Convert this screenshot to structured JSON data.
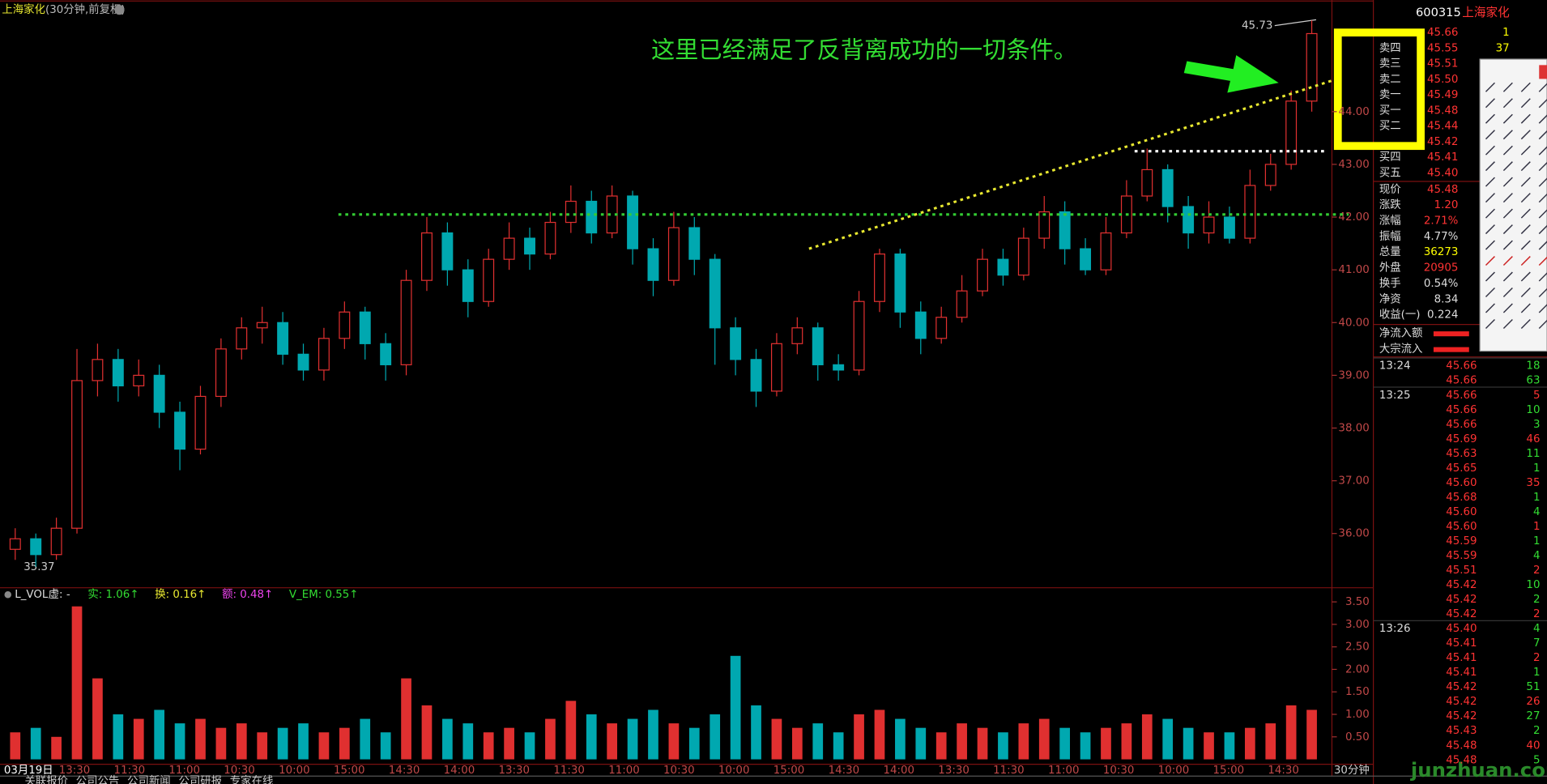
{
  "chart_data": {
    "type": "candlestick",
    "title_name": "上海家化",
    "title_period": "(30分钟,前复权)",
    "annotation": "这里已经满足了反背离成功的一切条件。",
    "high_label": "45.73",
    "low_label": "35.37",
    "period_label": "30分钟",
    "up_color": "#e03030",
    "down_color": "#00a8b0",
    "ylim": [
      34.99,
      45.93
    ],
    "yticks": [
      {
        "value": 36,
        "label": "36.00"
      },
      {
        "value": 37,
        "label": "37.00"
      },
      {
        "value": 38,
        "label": "38.00"
      },
      {
        "value": 39,
        "label": "39.00"
      },
      {
        "value": 40,
        "label": "40.00"
      },
      {
        "value": 41,
        "label": "41.00"
      },
      {
        "value": 42,
        "label": "42.00"
      },
      {
        "value": 43,
        "label": "43.00"
      },
      {
        "value": 44,
        "label": "44.00"
      }
    ],
    "x_labels": [
      "03月19日",
      "13:30",
      "11:30",
      "11:00",
      "10:30",
      "10:00",
      "15:00",
      "14:30",
      "14:00",
      "13:30",
      "11:30",
      "11:00",
      "10:30",
      "10:00",
      "15:00",
      "14:30",
      "14:00",
      "13:30",
      "11:30",
      "11:00",
      "10:30",
      "10:00",
      "15:00",
      "14:30"
    ],
    "open": [
      35.7,
      35.9,
      35.6,
      36.1,
      38.9,
      39.3,
      38.8,
      39.0,
      38.3,
      37.6,
      38.6,
      39.5,
      39.9,
      40.0,
      39.4,
      39.1,
      39.7,
      40.2,
      39.6,
      39.2,
      40.8,
      41.7,
      41.0,
      40.4,
      41.2,
      41.6,
      41.3,
      41.9,
      42.3,
      41.7,
      42.4,
      41.4,
      40.8,
      41.8,
      41.2,
      39.9,
      39.3,
      38.7,
      39.6,
      39.9,
      39.2,
      39.1,
      40.4,
      41.3,
      40.2,
      39.7,
      40.1,
      40.6,
      41.2,
      40.9,
      41.6,
      42.1,
      41.4,
      41.0,
      41.7,
      42.4,
      42.9,
      42.2,
      41.7,
      42.0,
      41.6,
      42.6,
      43.0,
      44.2
    ],
    "high": [
      36.1,
      36.0,
      36.3,
      39.5,
      39.6,
      39.5,
      39.3,
      39.2,
      38.5,
      38.8,
      39.7,
      40.1,
      40.3,
      40.2,
      39.6,
      39.9,
      40.4,
      40.3,
      39.8,
      41.0,
      42.0,
      41.9,
      41.2,
      41.4,
      41.9,
      41.8,
      42.1,
      42.6,
      42.5,
      42.6,
      42.5,
      41.6,
      42.1,
      42.0,
      41.3,
      40.1,
      39.5,
      39.8,
      40.1,
      40.0,
      39.4,
      40.6,
      41.4,
      41.4,
      40.4,
      40.3,
      40.9,
      41.4,
      41.4,
      41.8,
      42.4,
      42.3,
      41.6,
      42.0,
      42.7,
      43.3,
      43.0,
      42.4,
      42.3,
      42.2,
      42.9,
      43.2,
      44.4,
      45.73
    ],
    "low": [
      35.5,
      35.37,
      35.5,
      36.0,
      38.6,
      38.5,
      38.6,
      38.0,
      37.2,
      37.5,
      38.4,
      39.3,
      39.6,
      39.2,
      38.9,
      38.9,
      39.5,
      39.3,
      38.9,
      39.0,
      40.6,
      40.7,
      40.1,
      40.3,
      41.0,
      41.0,
      41.2,
      41.7,
      41.5,
      41.6,
      41.1,
      40.5,
      40.7,
      40.9,
      39.2,
      39.0,
      38.4,
      38.6,
      39.4,
      38.9,
      38.9,
      39.0,
      40.2,
      39.9,
      39.4,
      39.6,
      40.0,
      40.5,
      40.7,
      40.8,
      41.4,
      41.1,
      40.9,
      40.9,
      41.6,
      42.3,
      41.9,
      41.4,
      41.5,
      41.5,
      41.5,
      42.5,
      42.9,
      44.0
    ],
    "close": [
      35.9,
      35.6,
      36.1,
      38.9,
      39.3,
      38.8,
      39.0,
      38.3,
      37.6,
      38.6,
      39.5,
      39.9,
      40.0,
      39.4,
      39.1,
      39.7,
      40.2,
      39.6,
      39.2,
      40.8,
      41.7,
      41.0,
      40.4,
      41.2,
      41.6,
      41.3,
      41.9,
      42.3,
      41.7,
      42.4,
      41.4,
      40.8,
      41.8,
      41.2,
      39.9,
      39.3,
      38.7,
      39.6,
      39.9,
      39.2,
      39.1,
      40.4,
      41.3,
      40.2,
      39.7,
      40.1,
      40.6,
      41.2,
      40.9,
      41.6,
      42.1,
      41.4,
      41.0,
      41.7,
      42.4,
      42.9,
      42.2,
      41.7,
      42.0,
      41.6,
      42.6,
      43.0,
      44.2,
      45.48
    ],
    "levels": [
      {
        "value": 42.05,
        "color": "#33cc33"
      },
      {
        "value": 43.25,
        "color": "#ffffff"
      }
    ],
    "trendline": {
      "values": [
        41.4,
        44.6
      ],
      "color": "#e8e830"
    },
    "volume": {
      "header": [
        {
          "text": "L_VOL",
          "color": "#dddddd"
        },
        {
          "text": "虚: -",
          "color": "#dddddd"
        },
        {
          "text": "实: 1.06↑",
          "color": "#33dd33"
        },
        {
          "text": "换: 0.16↑",
          "color": "#e8e830"
        },
        {
          "text": "额: 0.48↑",
          "color": "#ee44ee"
        },
        {
          "text": "V_EM: 0.55↑",
          "color": "#33dd33"
        }
      ],
      "ylim": [
        0,
        3.77
      ],
      "yticks": [
        {
          "value": 0.5,
          "label": "0.50"
        },
        {
          "value": 1,
          "label": "1.00"
        },
        {
          "value": 1.5,
          "label": "1.50"
        },
        {
          "value": 2,
          "label": "2.00"
        },
        {
          "value": 2.5,
          "label": "2.50"
        },
        {
          "value": 3,
          "label": "3.00"
        },
        {
          "value": 3.5,
          "label": "3.50"
        }
      ],
      "values": [
        0.6,
        0.7,
        0.5,
        3.4,
        1.8,
        1.0,
        0.9,
        1.1,
        0.8,
        0.9,
        0.7,
        0.8,
        0.6,
        0.7,
        0.8,
        0.6,
        0.7,
        0.9,
        0.6,
        1.8,
        1.2,
        0.9,
        0.8,
        0.6,
        0.7,
        0.6,
        0.9,
        1.3,
        1.0,
        0.8,
        0.9,
        1.1,
        0.8,
        0.7,
        1.0,
        2.3,
        1.2,
        0.9,
        0.7,
        0.8,
        0.6,
        1.0,
        1.1,
        0.9,
        0.7,
        0.6,
        0.8,
        0.7,
        0.6,
        0.8,
        0.9,
        0.7,
        0.6,
        0.7,
        0.8,
        1.0,
        0.9,
        0.7,
        0.6,
        0.6,
        0.7,
        0.8,
        1.2,
        1.1
      ]
    }
  },
  "panel": {
    "code": "600315",
    "name": "上海家化",
    "order_book": {
      "labels": [
        null,
        "卖四",
        "卖三",
        "卖二",
        "卖一",
        "买一",
        "买二",
        null,
        "买四",
        "买五"
      ],
      "prices": [
        "45.66",
        "45.55",
        "45.51",
        "45.50",
        "45.49",
        "45.48",
        "45.44",
        "45.42",
        "45.41",
        "45.40"
      ],
      "quantities": [
        "1",
        "37",
        null,
        null,
        null,
        null,
        null,
        null,
        null,
        null
      ]
    },
    "stats": [
      [
        "现价",
        "45.48"
      ],
      [
        "涨跌",
        "1.20"
      ],
      [
        "涨幅",
        "2.71%"
      ],
      [
        "振幅",
        "4.77%"
      ],
      [
        "总量",
        "36273"
      ],
      [
        "外盘",
        "20905"
      ],
      [
        "换手",
        "0.54%"
      ],
      [
        "净资",
        "8.34"
      ],
      [
        "收益(一)",
        "0.224"
      ]
    ],
    "flows": [
      "净流入额",
      "大宗流入"
    ],
    "trades": [
      [
        "13:24",
        "45.66",
        "18"
      ],
      [
        null,
        "45.66",
        "63"
      ],
      [
        "13:25",
        "45.66",
        "5"
      ],
      [
        null,
        "45.66",
        "10"
      ],
      [
        null,
        "45.66",
        "3"
      ],
      [
        null,
        "45.69",
        "46"
      ],
      [
        null,
        "45.63",
        "11"
      ],
      [
        null,
        "45.65",
        "1"
      ],
      [
        null,
        "45.60",
        "35"
      ],
      [
        null,
        "45.68",
        "1"
      ],
      [
        null,
        "45.60",
        "4"
      ],
      [
        null,
        "45.60",
        "1"
      ],
      [
        null,
        "45.59",
        "1"
      ],
      [
        null,
        "45.59",
        "4"
      ],
      [
        null,
        "45.51",
        "2"
      ],
      [
        null,
        "45.42",
        "10"
      ],
      [
        null,
        "45.42",
        "2"
      ],
      [
        null,
        "45.42",
        "2"
      ],
      [
        "13:26",
        "45.40",
        "4"
      ],
      [
        null,
        "45.41",
        "7"
      ],
      [
        null,
        "45.41",
        "2"
      ],
      [
        null,
        "45.41",
        "1"
      ],
      [
        null,
        "45.42",
        "51"
      ],
      [
        null,
        "45.42",
        "26"
      ],
      [
        null,
        "45.42",
        "27"
      ],
      [
        null,
        "45.43",
        "2"
      ],
      [
        null,
        "45.48",
        "40"
      ],
      [
        null,
        "45.48",
        "5"
      ]
    ]
  },
  "tabs": [
    "关联报价",
    "公司公告",
    "公司新闻",
    "公司研报",
    "专家在线"
  ],
  "watermark": "junzhuan.com"
}
